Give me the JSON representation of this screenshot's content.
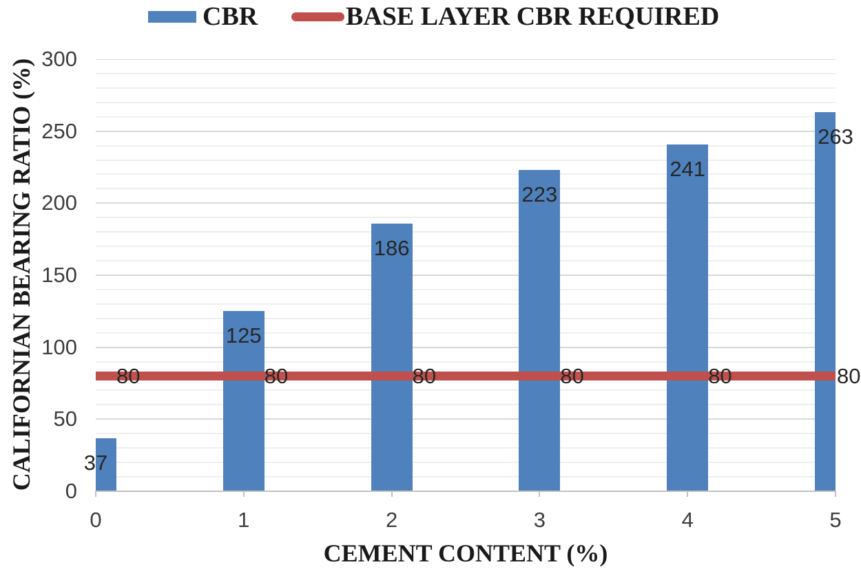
{
  "chart_data": {
    "type": "bar",
    "title": "",
    "categories": [
      "0",
      "1",
      "2",
      "3",
      "4",
      "5"
    ],
    "series": [
      {
        "name": "CBR",
        "kind": "bar",
        "color": "#4F81BD",
        "values": [
          37,
          125,
          186,
          223,
          241,
          263
        ]
      },
      {
        "name": "BASE LAYER CBR REQUIRED",
        "kind": "line",
        "color": "#C0504D",
        "values": [
          80,
          80,
          80,
          80,
          80,
          80
        ]
      }
    ],
    "xlabel": "CEMENT CONTENT (%)",
    "ylabel": "CALIFORNIAN BEARING RATIO (%)",
    "ylim": [
      0,
      300
    ],
    "y_major_step": 50,
    "y_minor_step": 10,
    "y_tick_labels": [
      "0",
      "50",
      "100",
      "150",
      "200",
      "250",
      "300"
    ],
    "grid": "horizontal",
    "legend_position": "top",
    "colors": {
      "axis_line": "#c1c1c1",
      "major_grid": "#d8d8d8",
      "minor_grid": "#efefef",
      "tick_label": "#3d3d3d",
      "data_label": "#262626",
      "title_text": "#1a1a1a"
    }
  }
}
